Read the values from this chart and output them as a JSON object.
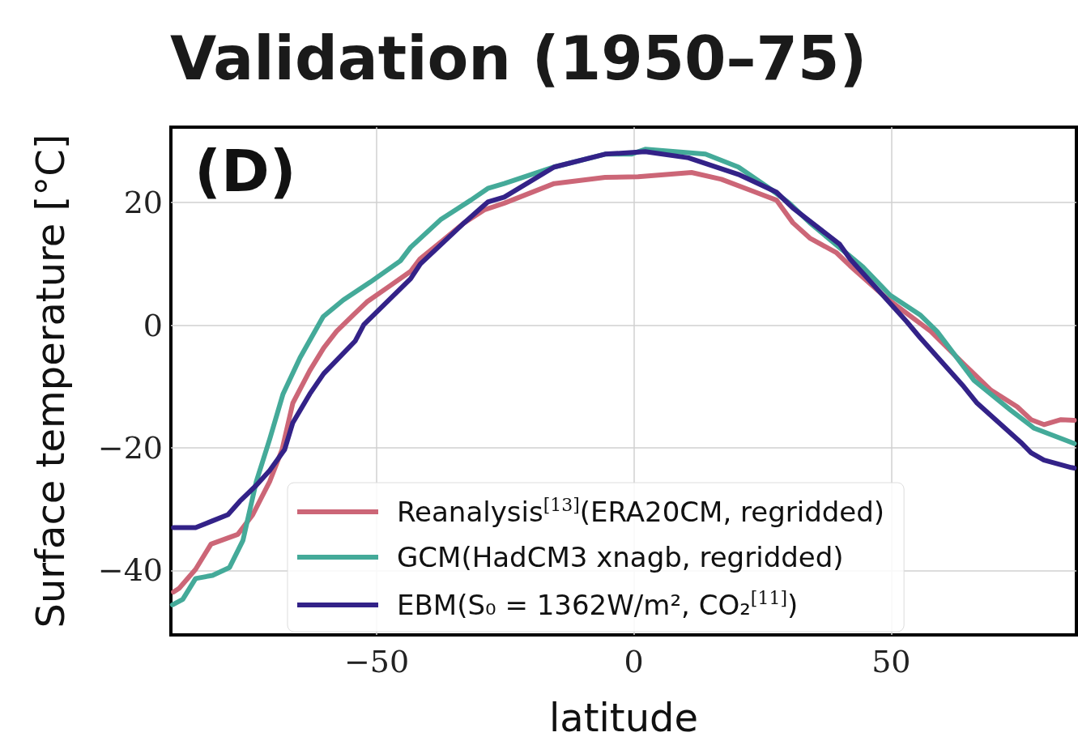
{
  "chart_data": {
    "type": "line",
    "title": "Validation (1950–75)",
    "xlabel": "latitude",
    "ylabel": "Surface temperature [°C]",
    "annotations": [
      "(D)"
    ],
    "xlim": [
      -90,
      86
    ],
    "ylim": [
      -50.5,
      32.3
    ],
    "xticks": [
      {
        "value": -50,
        "label": "−50"
      },
      0,
      50
    ],
    "yticks": [
      {
        "value": -40,
        "label": "−40"
      },
      {
        "value": -20,
        "label": "−20"
      },
      0,
      20
    ],
    "grid": true,
    "legend": "bottom left",
    "marker": "none",
    "line_style": "solid",
    "series": [
      {
        "name": "Reanalysis$^{[13]}$(ERA20CM, regridded)",
        "color": "#cc6677",
        "x": [
          -89.5,
          -88.4,
          -85.2,
          -82.2,
          -77,
          -74.1,
          -70.8,
          -68.4,
          -66.3,
          -63,
          -60.3,
          -57.8,
          -54.5,
          -51.9,
          -47.3,
          -43.4,
          -41.6,
          -36.9,
          -33,
          -29.1,
          -25.2,
          -15.5,
          -5.6,
          0.8,
          11.2,
          17,
          23.6,
          27.7,
          30.9,
          34.2,
          39.4,
          42,
          49.1,
          57.7,
          64.1,
          69.4,
          74.5,
          77.2,
          79.7,
          83,
          85.6
        ],
        "values": [
          -43.5,
          -42.9,
          -39.8,
          -35.7,
          -34.1,
          -30.9,
          -25.5,
          -20.3,
          -12.7,
          -7.4,
          -3.7,
          -1,
          1.7,
          3.8,
          6.5,
          8.8,
          10.8,
          14,
          16.7,
          18.8,
          19.9,
          23.1,
          24.1,
          24.2,
          24.9,
          23.8,
          21.7,
          20.4,
          16.7,
          14.2,
          11.8,
          9.7,
          4.4,
          -1,
          -6.3,
          -10.6,
          -13.3,
          -15.4,
          -16.2,
          -15.4,
          -15.5
        ]
      },
      {
        "name": "GCM(HadCM3 xnagb, regridded)",
        "color": "#44aa99",
        "x": [
          -89.7,
          -87.7,
          -85.2,
          -81.9,
          -78.6,
          -76,
          -73.4,
          -70.8,
          -68.2,
          -64.9,
          -60.4,
          -56.5,
          -51.3,
          -45.4,
          -43.4,
          -37.6,
          -31.7,
          -28.4,
          -25.2,
          -15.5,
          -5.6,
          -0.5,
          2.2,
          13.9,
          20.3,
          26.9,
          30.2,
          34.2,
          44.5,
          49.8,
          55.6,
          58.9,
          66.1,
          73.3,
          77.8,
          85,
          85.6
        ],
        "values": [
          -45.6,
          -44.7,
          -41.3,
          -40.8,
          -39.5,
          -35.1,
          -25.5,
          -18.6,
          -11.2,
          -5.3,
          1.4,
          4.1,
          7,
          10.5,
          12.7,
          17.2,
          20.4,
          22.3,
          23.1,
          25.8,
          27.9,
          27.9,
          28.7,
          27.9,
          25.8,
          22,
          19.9,
          16.7,
          9.5,
          4.9,
          1.7,
          -1,
          -9,
          -13.9,
          -16.8,
          -19.1,
          -19.3
        ]
      },
      {
        "name": "EBM(S₀ = 1362W/m², CO₂$^{[11]}$)",
        "color": "#332288",
        "x": [
          -89.5,
          -88.4,
          -85.2,
          -81.9,
          -78.9,
          -76.6,
          -73.4,
          -70.8,
          -67.9,
          -66.3,
          -63,
          -60.3,
          -54.2,
          -52.5,
          -43.4,
          -41.5,
          -33,
          -28.4,
          -25.2,
          -15.5,
          -5.6,
          2.2,
          10.6,
          20.3,
          27.7,
          30.9,
          40,
          42,
          53,
          55.6,
          64.1,
          66.7,
          75.2,
          77.2,
          79.7,
          85,
          85.6
        ],
        "values": [
          -33,
          -33,
          -33,
          -31.9,
          -30.9,
          -28.7,
          -26.1,
          -23.7,
          -20.3,
          -15.9,
          -11.2,
          -7.9,
          -2.6,
          0.1,
          7.6,
          10,
          16.7,
          20.1,
          20.9,
          25.8,
          27.9,
          28.3,
          27.3,
          24.6,
          21.7,
          19.1,
          13.2,
          10.8,
          0.6,
          -2,
          -10,
          -12.7,
          -19.1,
          -20.8,
          -22,
          -23.2,
          -23.3
        ]
      }
    ]
  }
}
